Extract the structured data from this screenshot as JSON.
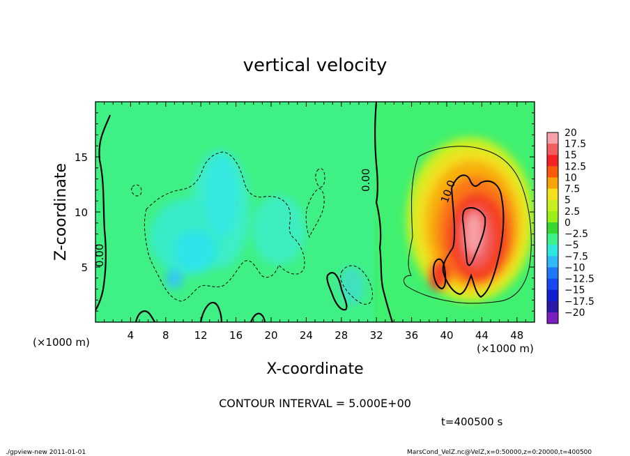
{
  "chart_data": {
    "type": "heatmap",
    "title": "vertical velocity",
    "xlabel": "X-coordinate",
    "ylabel": "Z-coordinate",
    "x_unit_label": "(×1000 m)",
    "y_unit_label": "(×1000 m)",
    "xlim": [
      0,
      50
    ],
    "ylim": [
      0,
      20
    ],
    "x_ticks": [
      4,
      8,
      12,
      16,
      20,
      24,
      28,
      32,
      36,
      40,
      44,
      48
    ],
    "y_ticks": [
      5,
      10,
      15
    ],
    "contour_interval_text": "CONTOUR INTERVAL = 5.000E+00",
    "contour_labels": [
      "0.00",
      "0.00",
      "10.0"
    ],
    "colorbar": {
      "levels": [
        "20",
        "17.5",
        "15",
        "12.5",
        "10",
        "7.5",
        "5",
        "2.5",
        "0",
        "−2.5",
        "−5",
        "−7.5",
        "−10",
        "−12.5",
        "−15",
        "−17.5",
        "−20"
      ],
      "colors": [
        "#f9a0a8",
        "#f25d5d",
        "#f42323",
        "#fa5a0a",
        "#f8a408",
        "#f5e020",
        "#c8f020",
        "#9af018",
        "#34d830",
        "#40f08a",
        "#2ee8e0",
        "#30b8f8",
        "#1e78f8",
        "#1848f0",
        "#1020d0",
        "#2a18a8",
        "#7a20c0"
      ]
    },
    "features": [
      {
        "kind": "updraft",
        "x_center": 43,
        "z_center": 9,
        "peak": 20
      },
      {
        "kind": "downdraft",
        "x_center": 14,
        "z_center": 9,
        "min": -7.5
      }
    ],
    "time_text": "t=400500 s"
  },
  "footer": {
    "left": "./gpview-new  2011-01-01",
    "right": "MarsCond_VelZ.nc@VelZ,x=0:50000,z=0:20000,t=400500"
  }
}
